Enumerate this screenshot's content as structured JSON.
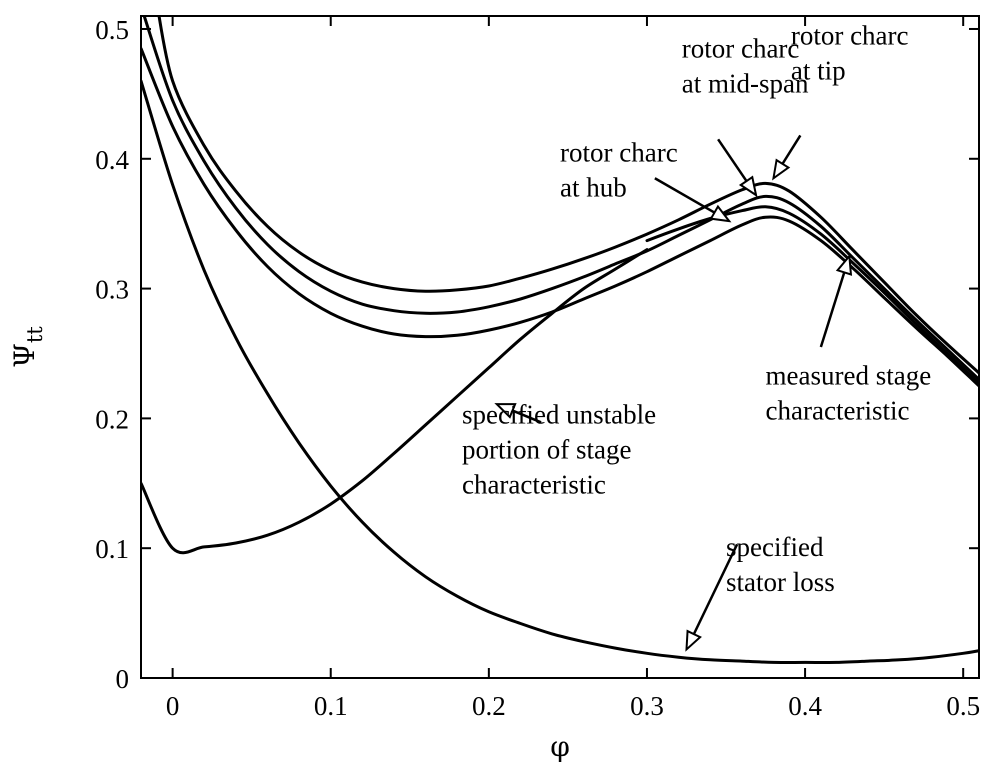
{
  "chart_data": {
    "type": "line",
    "xlabel": "φ",
    "ylabel": "Ψ",
    "ylabel_subscript": "tt",
    "xlim": [
      -0.02,
      0.51
    ],
    "ylim": [
      0,
      0.51
    ],
    "x_ticks": [
      0,
      0.1,
      0.2,
      0.3,
      0.4,
      0.5
    ],
    "x_tick_labels": [
      "0",
      "0.1",
      "0.2",
      "0.3",
      "0.4",
      "0.5"
    ],
    "y_ticks": [
      0,
      0.1,
      0.2,
      0.3,
      0.4,
      0.5
    ],
    "y_tick_labels": [
      "0",
      "0.1",
      "0.2",
      "0.3",
      "0.4",
      "0.5"
    ],
    "grid": false,
    "legend": "none",
    "series": [
      {
        "id": "rotor-tip",
        "points": [
          [
            -0.01,
            0.52
          ],
          [
            0.0,
            0.46
          ],
          [
            0.02,
            0.41
          ],
          [
            0.04,
            0.375
          ],
          [
            0.06,
            0.348
          ],
          [
            0.08,
            0.328
          ],
          [
            0.1,
            0.314
          ],
          [
            0.12,
            0.305
          ],
          [
            0.14,
            0.3
          ],
          [
            0.16,
            0.298
          ],
          [
            0.18,
            0.299
          ],
          [
            0.2,
            0.302
          ],
          [
            0.22,
            0.308
          ],
          [
            0.24,
            0.315
          ],
          [
            0.26,
            0.323
          ],
          [
            0.28,
            0.332
          ],
          [
            0.3,
            0.342
          ],
          [
            0.32,
            0.353
          ],
          [
            0.34,
            0.365
          ],
          [
            0.36,
            0.376
          ],
          [
            0.375,
            0.381
          ],
          [
            0.39,
            0.375
          ],
          [
            0.41,
            0.355
          ],
          [
            0.43,
            0.33
          ],
          [
            0.45,
            0.305
          ],
          [
            0.47,
            0.28
          ],
          [
            0.49,
            0.257
          ],
          [
            0.51,
            0.235
          ]
        ]
      },
      {
        "id": "rotor-mid-span",
        "points": [
          [
            -0.018,
            0.51
          ],
          [
            0.0,
            0.445
          ],
          [
            0.02,
            0.398
          ],
          [
            0.04,
            0.362
          ],
          [
            0.06,
            0.334
          ],
          [
            0.08,
            0.313
          ],
          [
            0.1,
            0.298
          ],
          [
            0.12,
            0.288
          ],
          [
            0.14,
            0.283
          ],
          [
            0.16,
            0.281
          ],
          [
            0.18,
            0.282
          ],
          [
            0.2,
            0.286
          ],
          [
            0.22,
            0.292
          ],
          [
            0.24,
            0.3
          ],
          [
            0.26,
            0.309
          ],
          [
            0.28,
            0.319
          ],
          [
            0.3,
            0.329
          ],
          [
            0.32,
            0.341
          ],
          [
            0.34,
            0.353
          ],
          [
            0.36,
            0.365
          ],
          [
            0.375,
            0.371
          ],
          [
            0.39,
            0.366
          ],
          [
            0.41,
            0.348
          ],
          [
            0.43,
            0.324
          ],
          [
            0.45,
            0.3
          ],
          [
            0.47,
            0.276
          ],
          [
            0.49,
            0.253
          ],
          [
            0.51,
            0.23
          ]
        ]
      },
      {
        "id": "rotor-hub",
        "points": [
          [
            -0.02,
            0.485
          ],
          [
            0.0,
            0.425
          ],
          [
            0.02,
            0.38
          ],
          [
            0.04,
            0.345
          ],
          [
            0.06,
            0.317
          ],
          [
            0.08,
            0.296
          ],
          [
            0.1,
            0.281
          ],
          [
            0.12,
            0.271
          ],
          [
            0.14,
            0.265
          ],
          [
            0.16,
            0.263
          ],
          [
            0.18,
            0.264
          ],
          [
            0.2,
            0.268
          ],
          [
            0.22,
            0.274
          ],
          [
            0.24,
            0.282
          ],
          [
            0.26,
            0.292
          ],
          [
            0.28,
            0.302
          ],
          [
            0.3,
            0.313
          ],
          [
            0.32,
            0.325
          ],
          [
            0.34,
            0.337
          ],
          [
            0.36,
            0.349
          ],
          [
            0.375,
            0.355
          ],
          [
            0.39,
            0.352
          ],
          [
            0.41,
            0.337
          ],
          [
            0.43,
            0.316
          ],
          [
            0.45,
            0.293
          ],
          [
            0.47,
            0.27
          ],
          [
            0.49,
            0.248
          ],
          [
            0.51,
            0.225
          ]
        ]
      },
      {
        "id": "measured-stage-characteristic",
        "points": [
          [
            0.3,
            0.337
          ],
          [
            0.32,
            0.346
          ],
          [
            0.34,
            0.354
          ],
          [
            0.36,
            0.36
          ],
          [
            0.375,
            0.363
          ],
          [
            0.39,
            0.358
          ],
          [
            0.41,
            0.342
          ],
          [
            0.43,
            0.32
          ],
          [
            0.45,
            0.297
          ],
          [
            0.47,
            0.273
          ],
          [
            0.49,
            0.25
          ],
          [
            0.51,
            0.227
          ]
        ]
      },
      {
        "id": "specified-unstable-portion",
        "points": [
          [
            -0.02,
            0.15
          ],
          [
            0.0,
            0.1
          ],
          [
            0.02,
            0.101
          ],
          [
            0.04,
            0.104
          ],
          [
            0.06,
            0.11
          ],
          [
            0.08,
            0.12
          ],
          [
            0.1,
            0.134
          ],
          [
            0.12,
            0.152
          ],
          [
            0.14,
            0.173
          ],
          [
            0.16,
            0.195
          ],
          [
            0.18,
            0.217
          ],
          [
            0.2,
            0.239
          ],
          [
            0.22,
            0.261
          ],
          [
            0.24,
            0.281
          ],
          [
            0.26,
            0.3
          ],
          [
            0.28,
            0.315
          ],
          [
            0.3,
            0.33
          ]
        ]
      },
      {
        "id": "specified-stator-loss",
        "points": [
          [
            -0.02,
            0.46
          ],
          [
            0.0,
            0.38
          ],
          [
            0.02,
            0.314
          ],
          [
            0.04,
            0.262
          ],
          [
            0.06,
            0.219
          ],
          [
            0.08,
            0.181
          ],
          [
            0.1,
            0.148
          ],
          [
            0.12,
            0.12
          ],
          [
            0.14,
            0.097
          ],
          [
            0.16,
            0.078
          ],
          [
            0.18,
            0.063
          ],
          [
            0.2,
            0.051
          ],
          [
            0.22,
            0.042
          ],
          [
            0.24,
            0.034
          ],
          [
            0.26,
            0.028
          ],
          [
            0.28,
            0.023
          ],
          [
            0.3,
            0.019
          ],
          [
            0.32,
            0.016
          ],
          [
            0.34,
            0.014
          ],
          [
            0.36,
            0.013
          ],
          [
            0.38,
            0.012
          ],
          [
            0.4,
            0.012
          ],
          [
            0.42,
            0.012
          ],
          [
            0.44,
            0.013
          ],
          [
            0.46,
            0.014
          ],
          [
            0.48,
            0.016
          ],
          [
            0.5,
            0.019
          ],
          [
            0.51,
            0.021
          ]
        ]
      }
    ],
    "annotations": [
      {
        "id": "rotor-charc-mid-span",
        "lines": [
          "rotor charc",
          "at mid-span"
        ]
      },
      {
        "id": "rotor-charc-tip",
        "lines": [
          "rotor charc",
          "at tip"
        ]
      },
      {
        "id": "rotor-charc-hub",
        "lines": [
          "rotor charc",
          "at hub"
        ]
      },
      {
        "id": "measured-stage",
        "lines": [
          "measured stage",
          "characteristic"
        ]
      },
      {
        "id": "specified-unstable",
        "lines": [
          "specified unstable",
          "portion of stage",
          "characteristic"
        ]
      },
      {
        "id": "specified-stator-loss",
        "lines": [
          "specified",
          "stator loss"
        ]
      }
    ]
  }
}
